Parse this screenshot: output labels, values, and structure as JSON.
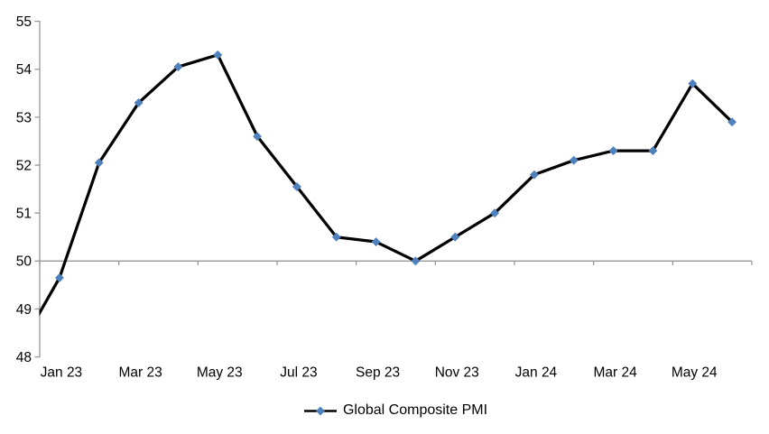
{
  "chart_data": {
    "type": "line",
    "title": "",
    "x": [
      "Dec 22",
      "Jan 23",
      "Feb 23",
      "Mar 23",
      "Apr 23",
      "May 23",
      "Jun 23",
      "Jul 23",
      "Aug 23",
      "Sep 23",
      "Oct 23",
      "Nov 23",
      "Dec 23",
      "Jan 24",
      "Feb 24",
      "Mar 24",
      "Apr 24",
      "May 24",
      "Jun 24"
    ],
    "series": [
      {
        "name": "Global Composite PMI",
        "values": [
          48.2,
          49.65,
          52.05,
          53.3,
          54.05,
          54.3,
          52.6,
          51.55,
          50.5,
          50.4,
          50.0,
          50.5,
          51.0,
          51.8,
          52.1,
          52.3,
          52.3,
          53.7,
          52.9
        ]
      }
    ],
    "first_point_clipped_at_left_edge": true,
    "x_axis_tick_labels": [
      "Jan 23",
      "Mar 23",
      "May 23",
      "Jul 23",
      "Sep 23",
      "Nov 23",
      "Jan 24",
      "Mar 24",
      "May 24"
    ],
    "y_axis_ticks": [
      48,
      49,
      50,
      51,
      52,
      53,
      54,
      55
    ],
    "ylim": [
      48,
      55
    ],
    "x_axis_crosses_at": 50,
    "grid": false,
    "legend_position": "bottom-center",
    "colors": {
      "line": "#000000",
      "marker": "#4f81bd",
      "axis": "#969696",
      "text": "#000000",
      "background": "#ffffff"
    }
  }
}
